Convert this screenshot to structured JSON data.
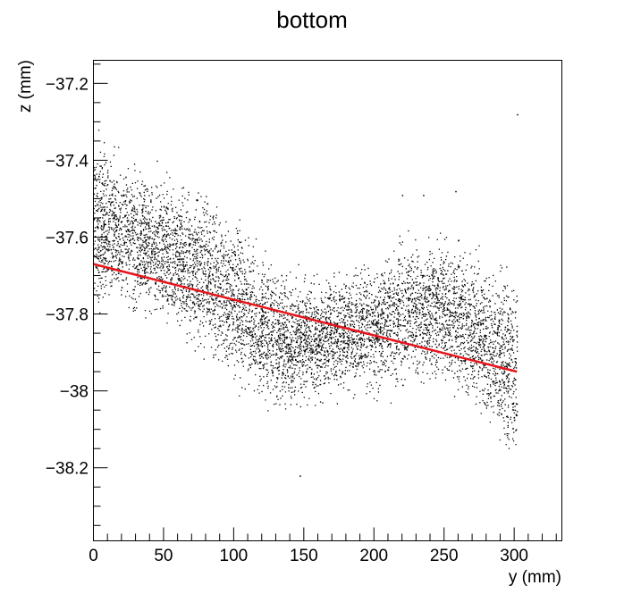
{
  "chart_data": {
    "type": "scatter",
    "title": "bottom",
    "xlabel": "y (mm)",
    "ylabel": "z (mm)",
    "xlim": [
      0,
      334
    ],
    "ylim": [
      -38.39,
      -37.14
    ],
    "x_ticks": [
      0,
      50,
      100,
      150,
      200,
      250,
      300
    ],
    "x_tick_labels": [
      "0",
      "50",
      "100",
      "150",
      "200",
      "250",
      "300"
    ],
    "y_ticks": [
      -37.2,
      -37.4,
      -37.6,
      -37.8,
      -38,
      -38.2
    ],
    "y_tick_labels": [
      "−37.2",
      "−37.4",
      "−37.6",
      "−37.8",
      "−38",
      "−38.2"
    ],
    "grid": false,
    "legend": "none",
    "series": [
      {
        "kind": "point-cloud",
        "color": "#000000",
        "band_upper": [
          [
            0,
            -37.27
          ],
          [
            20,
            -37.35
          ],
          [
            40,
            -37.39
          ],
          [
            60,
            -37.4
          ],
          [
            80,
            -37.44
          ],
          [
            100,
            -37.5
          ],
          [
            120,
            -37.6
          ],
          [
            140,
            -37.66
          ],
          [
            160,
            -37.67
          ],
          [
            180,
            -37.65
          ],
          [
            200,
            -37.61
          ],
          [
            220,
            -37.56
          ],
          [
            240,
            -37.54
          ],
          [
            260,
            -37.56
          ],
          [
            280,
            -37.6
          ],
          [
            302,
            -37.63
          ]
        ],
        "band_lower": [
          [
            0,
            -37.84
          ],
          [
            20,
            -37.84
          ],
          [
            40,
            -37.86
          ],
          [
            60,
            -37.91
          ],
          [
            80,
            -37.97
          ],
          [
            100,
            -38.02
          ],
          [
            120,
            -38.07
          ],
          [
            140,
            -38.09
          ],
          [
            160,
            -38.06
          ],
          [
            180,
            -38.04
          ],
          [
            200,
            -38.05
          ],
          [
            220,
            -38.04
          ],
          [
            240,
            -38.02
          ],
          [
            260,
            -38.05
          ],
          [
            280,
            -38.14
          ],
          [
            302,
            -38.28
          ]
        ]
      },
      {
        "kind": "fit-line",
        "color": "#e8141a",
        "x": [
          0,
          302
        ],
        "y": [
          -37.67,
          -37.95
        ]
      }
    ],
    "outliers": [
      [
        302,
        -37.28
      ],
      [
        147,
        -38.22
      ],
      [
        220,
        -37.49
      ],
      [
        235,
        -37.49
      ],
      [
        258,
        -37.48
      ]
    ]
  }
}
